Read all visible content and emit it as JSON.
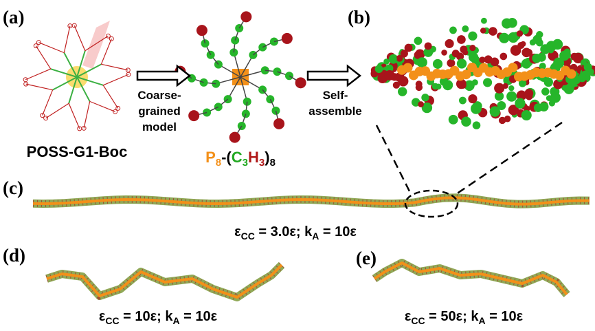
{
  "panels": {
    "a": {
      "label": "(a)",
      "name": "POSS-G1-Boc"
    },
    "b": {
      "label": "(b)"
    },
    "c": {
      "label": "(c)",
      "caption": [
        "ε",
        "CC",
        " = 3.0ε; k",
        "A",
        " = 10ε"
      ]
    },
    "d": {
      "label": "(d)",
      "caption": [
        "ε",
        "CC",
        " = 10ε; k",
        "A",
        " = 10ε"
      ]
    },
    "e": {
      "label": "(e)",
      "caption": [
        "ε",
        "CC",
        " = 50ε; k",
        "A",
        " = 10ε"
      ]
    }
  },
  "arrows": [
    {
      "label": [
        "Coarse-",
        "grained",
        "model"
      ]
    },
    {
      "label": [
        "Self-",
        "assemble"
      ]
    }
  ],
  "formula": [
    "P",
    "8",
    "-(",
    "C",
    "3",
    "H",
    "3",
    ")",
    "8"
  ]
}
